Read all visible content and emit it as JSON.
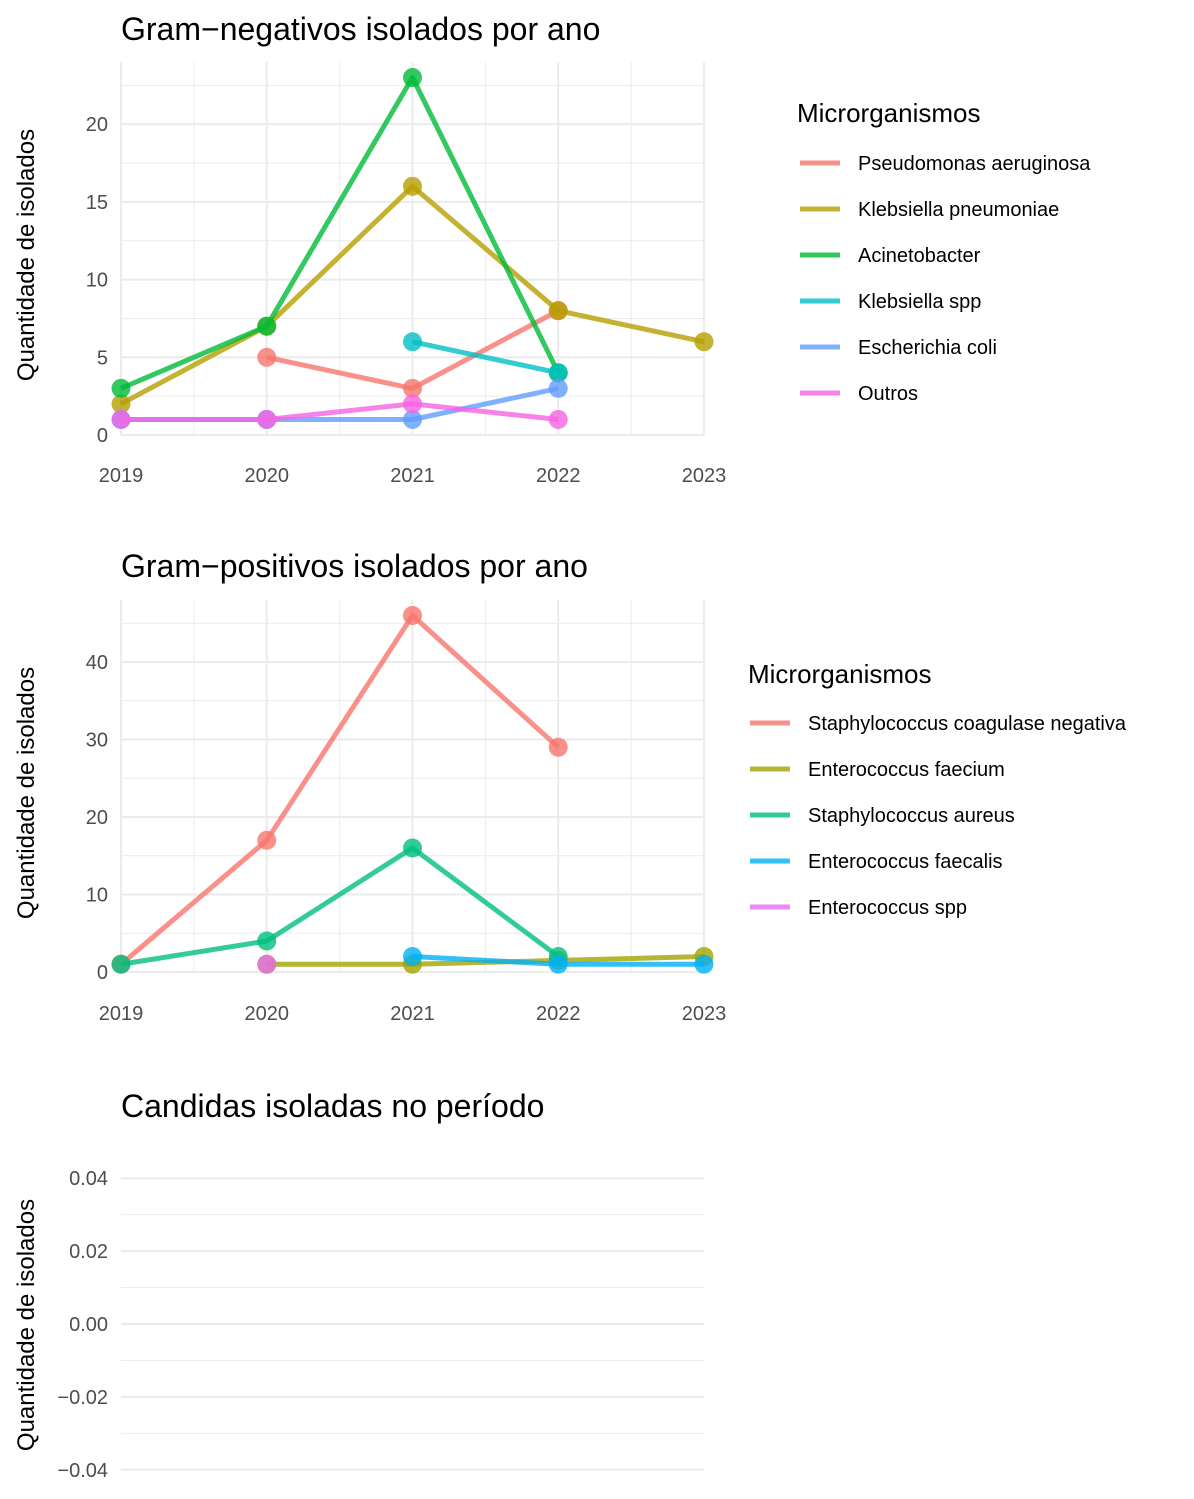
{
  "chart_data": [
    {
      "type": "line",
      "title": "Gram−negativos isolados por ano",
      "xlabel": "",
      "ylabel": "Quantidade de isolados",
      "x_ticks": [
        "2019",
        "2020",
        "2021",
        "2022",
        "2023"
      ],
      "y_ticks": [
        "0",
        "5",
        "10",
        "15",
        "20"
      ],
      "xlim": [
        2019,
        2023
      ],
      "ylim": [
        0,
        23
      ],
      "grid": true,
      "legend": {
        "title": "Microrganismos",
        "position": "right"
      },
      "series": [
        {
          "name": "Pseudomonas aeruginosa",
          "color": "#F8766D",
          "points": [
            [
              2020,
              5
            ],
            [
              2021,
              3
            ],
            [
              2022,
              8
            ]
          ]
        },
        {
          "name": "Klebsiella pneumoniae",
          "color": "#B79F00",
          "points": [
            [
              2019,
              2
            ],
            [
              2020,
              7
            ],
            [
              2021,
              16
            ],
            [
              2022,
              8
            ],
            [
              2023,
              6
            ]
          ]
        },
        {
          "name": "Acinetobacter",
          "color": "#00BA38",
          "points": [
            [
              2019,
              3
            ],
            [
              2020,
              7
            ],
            [
              2021,
              23
            ],
            [
              2022,
              4
            ]
          ]
        },
        {
          "name": "Klebsiella spp",
          "color": "#00BFC4",
          "points": [
            [
              2021,
              6
            ],
            [
              2022,
              4
            ]
          ]
        },
        {
          "name": "Escherichia coli",
          "color": "#619CFF",
          "points": [
            [
              2019,
              1
            ],
            [
              2020,
              1
            ],
            [
              2021,
              1
            ],
            [
              2022,
              3
            ]
          ]
        },
        {
          "name": "Outros",
          "color": "#F564E3",
          "points": [
            [
              2019,
              1
            ],
            [
              2020,
              1
            ],
            [
              2021,
              2
            ],
            [
              2022,
              1
            ]
          ]
        }
      ]
    },
    {
      "type": "line",
      "title": "Gram−positivos isolados por ano",
      "xlabel": "",
      "ylabel": "Quantidade de isolados",
      "x_ticks": [
        "2019",
        "2020",
        "2021",
        "2022",
        "2023"
      ],
      "y_ticks": [
        "0",
        "10",
        "20",
        "30",
        "40"
      ],
      "xlim": [
        2019,
        2023
      ],
      "ylim": [
        1,
        46
      ],
      "grid": true,
      "legend": {
        "title": "Microrganismos",
        "position": "right"
      },
      "series": [
        {
          "name": "Staphylococcus coagulase negativa",
          "color": "#F8766D",
          "points": [
            [
              2019,
              1
            ],
            [
              2020,
              17
            ],
            [
              2021,
              46
            ],
            [
              2022,
              29
            ]
          ]
        },
        {
          "name": "Enterococcus faecium",
          "color": "#A3A500",
          "points": [
            [
              2020,
              1
            ],
            [
              2021,
              1
            ],
            [
              2022,
              1.5
            ],
            [
              2023,
              2
            ]
          ]
        },
        {
          "name": "Staphylococcus aureus",
          "color": "#00BF7D",
          "points": [
            [
              2019,
              1
            ],
            [
              2020,
              4
            ],
            [
              2021,
              16
            ],
            [
              2022,
              2
            ]
          ]
        },
        {
          "name": "Enterococcus faecalis",
          "color": "#00B0F6",
          "points": [
            [
              2021,
              2
            ],
            [
              2022,
              1
            ],
            [
              2023,
              1
            ]
          ]
        },
        {
          "name": "Enterococcus spp",
          "color": "#E76BF3",
          "points": [
            [
              2020,
              1
            ]
          ]
        }
      ]
    },
    {
      "type": "line",
      "title": "Candidas isoladas no período",
      "xlabel": "",
      "ylabel": "Quantidade de isolados",
      "x_ticks": [],
      "y_ticks": [
        "−0.04",
        "−0.02",
        "0.00",
        "0.02",
        "0.04"
      ],
      "ylim": [
        -0.04,
        0.04
      ],
      "grid": true,
      "series": []
    }
  ]
}
